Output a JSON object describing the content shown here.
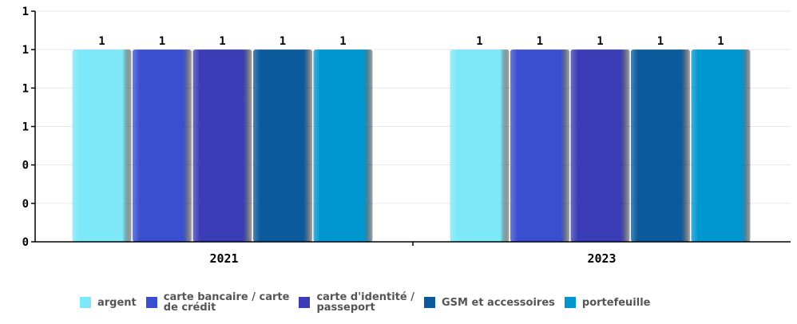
{
  "chart_data": {
    "type": "bar",
    "categories": [
      "2021",
      "2023"
    ],
    "series": [
      {
        "name": "argent",
        "values": [
          1,
          1
        ],
        "color": "#7de8f7"
      },
      {
        "name": "carte bancaire / carte\nde crédit",
        "values": [
          1,
          1
        ],
        "color": "#3a4fcf"
      },
      {
        "name": "carte d'identité /\npasseport",
        "values": [
          1,
          1
        ],
        "color": "#3a3db5"
      },
      {
        "name": "GSM et accessoires",
        "values": [
          1,
          1
        ],
        "color": "#0b5a9c"
      },
      {
        "name": "portefeuille",
        "values": [
          1,
          1
        ],
        "color": "#0097d1"
      }
    ],
    "data_labels": [
      "1",
      "1",
      "1",
      "1",
      "1",
      "1",
      "1",
      "1",
      "1",
      "1"
    ],
    "y_tick_labels": [
      "0",
      "0",
      "0",
      "1",
      "1",
      "1",
      "1"
    ],
    "ylim": [
      0,
      1.2
    ],
    "grid": true,
    "legend_position": "bottom",
    "title": "",
    "xlabel": "",
    "ylabel": ""
  }
}
